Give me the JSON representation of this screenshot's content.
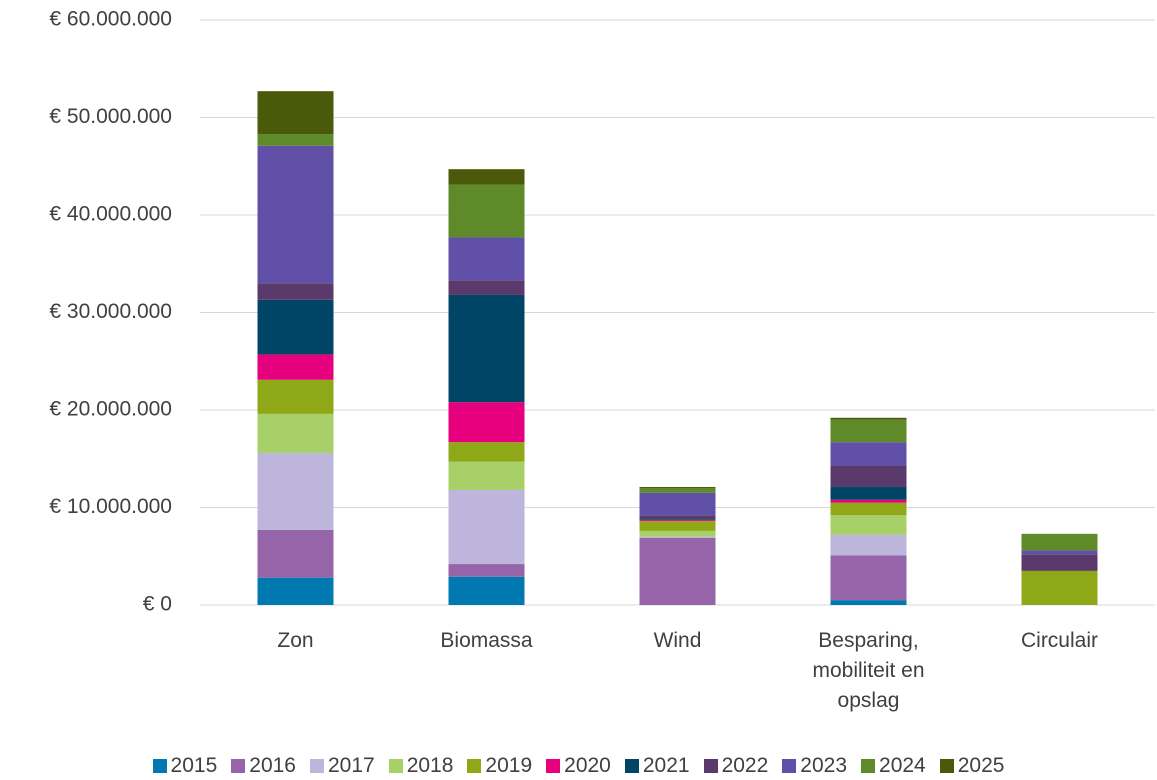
{
  "chart_data": {
    "type": "stacked_bar",
    "categories": [
      "Zon",
      "Biomassa",
      "Wind",
      "Besparing, mobiliteit en opslag",
      "Circulair"
    ],
    "series": [
      {
        "name": "2015",
        "color": "#0079b0",
        "values": [
          2800000,
          2900000,
          0,
          500000,
          0
        ]
      },
      {
        "name": "2016",
        "color": "#9664a8",
        "values": [
          4900000,
          1300000,
          6900000,
          4600000,
          0
        ]
      },
      {
        "name": "2017",
        "color": "#bdb5db",
        "values": [
          7900000,
          7600000,
          100000,
          2100000,
          0
        ]
      },
      {
        "name": "2018",
        "color": "#a8d068",
        "values": [
          4000000,
          2900000,
          600000,
          2000000,
          0
        ]
      },
      {
        "name": "2019",
        "color": "#8ea818",
        "values": [
          3500000,
          2000000,
          1000000,
          1300000,
          3500000
        ]
      },
      {
        "name": "2020",
        "color": "#e6007e",
        "values": [
          2600000,
          4100000,
          100000,
          300000,
          0
        ]
      },
      {
        "name": "2021",
        "color": "#004466",
        "values": [
          5600000,
          11000000,
          100000,
          1300000,
          0
        ]
      },
      {
        "name": "2022",
        "color": "#5a3a6a",
        "values": [
          1700000,
          1500000,
          400000,
          2200000,
          1700000
        ]
      },
      {
        "name": "2023",
        "color": "#6050a8",
        "values": [
          14100000,
          4400000,
          2300000,
          2400000,
          400000
        ]
      },
      {
        "name": "2024",
        "color": "#5e8a2a",
        "values": [
          1200000,
          5400000,
          500000,
          2300000,
          1700000
        ]
      },
      {
        "name": "2025",
        "color": "#4a5a0a",
        "values": [
          4400000,
          1600000,
          100000,
          200000,
          0
        ]
      }
    ],
    "ylim": [
      0,
      60000000
    ],
    "yticks": [
      {
        "value": 0,
        "label": "€ 0"
      },
      {
        "value": 10000000,
        "label": "€ 10.000.000"
      },
      {
        "value": 20000000,
        "label": "€ 20.000.000"
      },
      {
        "value": 30000000,
        "label": "€ 30.000.000"
      },
      {
        "value": 40000000,
        "label": "€ 40.000.000"
      },
      {
        "value": 50000000,
        "label": "€ 50.000.000"
      },
      {
        "value": 60000000,
        "label": "€ 60.000.000"
      }
    ],
    "grid": true,
    "legend": "bottom"
  }
}
